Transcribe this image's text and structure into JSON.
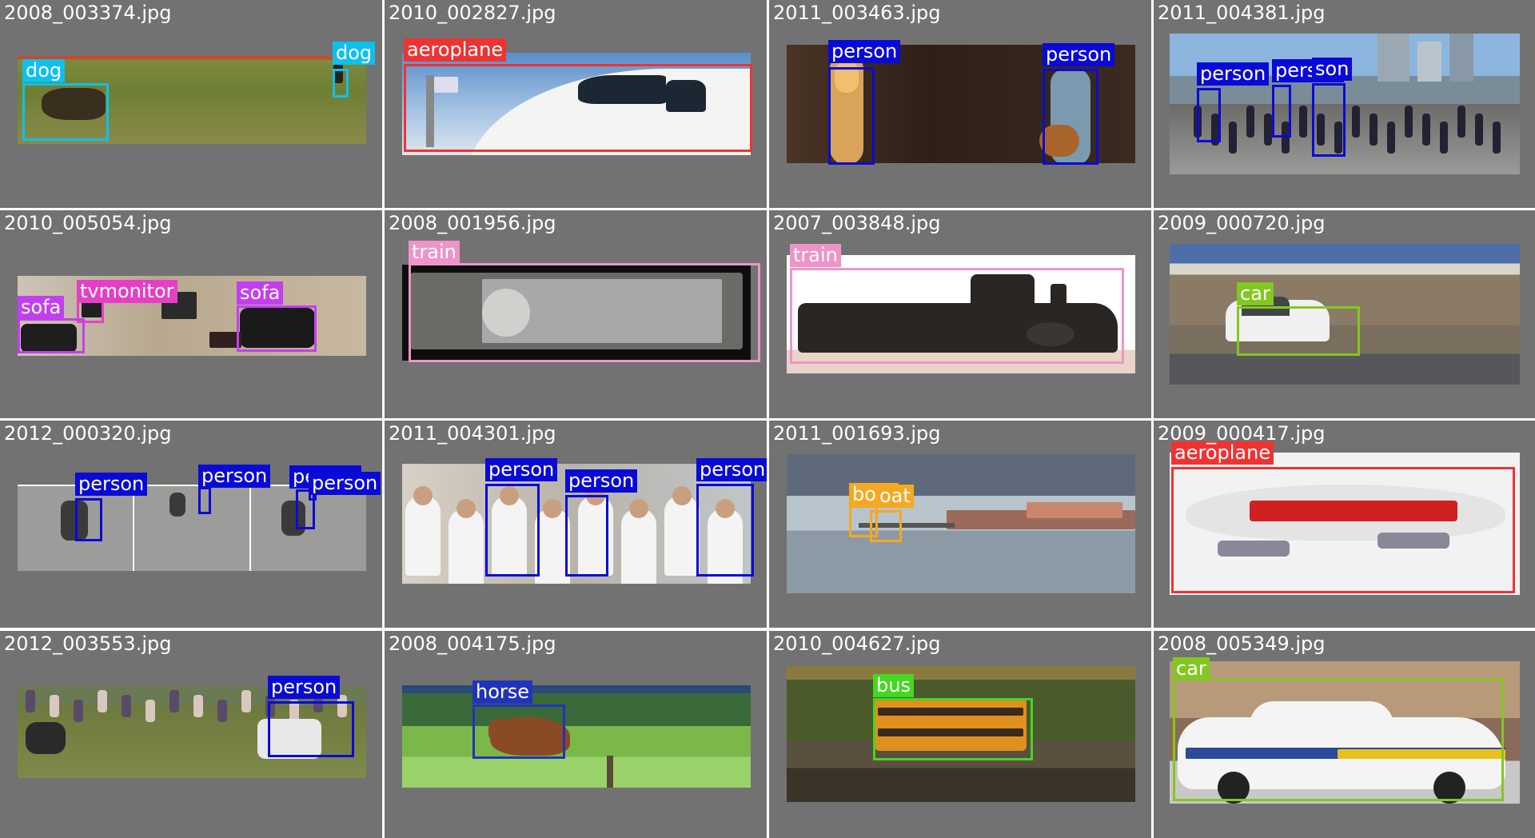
{
  "palette": {
    "person": "#0a0ad6",
    "dog": "#0ec0ee",
    "aeroplane": "#ee3333",
    "sofa": "#c23ff0",
    "tvmonitor": "#e53fc8",
    "train": "#ee94c8",
    "car": "#82c820",
    "boat": "#f5a820",
    "horse": "#2233bb",
    "bus": "#44d820"
  },
  "tiles": [
    {
      "name": "2008_003374.jpg",
      "scene": "grass-field",
      "labels": [
        "dog",
        "dog"
      ]
    },
    {
      "name": "2010_002827.jpg",
      "scene": "aircraft-nose",
      "labels": [
        "aeroplane"
      ]
    },
    {
      "name": "2011_003463.jpg",
      "scene": "stage-performers",
      "labels": [
        "person",
        "person"
      ]
    },
    {
      "name": "2011_004381.jpg",
      "scene": "city-cyclists",
      "labels": [
        "person",
        "person",
        "son"
      ]
    },
    {
      "name": "2010_005054.jpg",
      "scene": "living-room",
      "labels": [
        "tvmonitor",
        "sofa",
        "sofa"
      ]
    },
    {
      "name": "2008_001956.jpg",
      "scene": "graffiti-train",
      "labels": [
        "train"
      ]
    },
    {
      "name": "2007_003848.jpg",
      "scene": "model-locomotive",
      "labels": [
        "train"
      ]
    },
    {
      "name": "2009_000720.jpg",
      "scene": "mountain-car",
      "labels": [
        "car"
      ]
    },
    {
      "name": "2012_000320.jpg",
      "scene": "cyclist-strip",
      "labels": [
        "person",
        "person",
        "person",
        "person"
      ]
    },
    {
      "name": "2011_004301.jpg",
      "scene": "flute-ensemble",
      "labels": [
        "person",
        "person",
        "person"
      ]
    },
    {
      "name": "2011_001693.jpg",
      "scene": "harbor-pier",
      "labels": [
        "boat",
        "oat"
      ]
    },
    {
      "name": "2009_000417.jpg",
      "scene": "airliner-sky",
      "labels": [
        "aeroplane"
      ]
    },
    {
      "name": "2012_003553.jpg",
      "scene": "fair-grounds",
      "labels": [
        "person"
      ]
    },
    {
      "name": "2008_004175.jpg",
      "scene": "horse-meadow",
      "labels": [
        "horse"
      ]
    },
    {
      "name": "2010_004627.jpg",
      "scene": "bus-forest",
      "labels": [
        "bus"
      ]
    },
    {
      "name": "2008_005349.jpg",
      "scene": "police-car",
      "labels": [
        "car"
      ]
    }
  ]
}
